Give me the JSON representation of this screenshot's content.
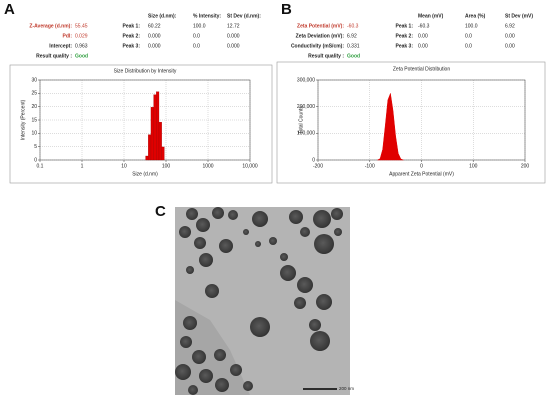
{
  "panel_labels": [
    "A",
    "B",
    "C"
  ],
  "summary_a": {
    "header": [
      "Size (d.nm):",
      "% Intensity:",
      "St Dev (d.nm):"
    ],
    "left": [
      [
        "Z-Average (d.nm):",
        "55.45"
      ],
      [
        "PdI:",
        "0.029"
      ],
      [
        "Intercept:",
        "0.963"
      ]
    ],
    "right": [
      [
        "Peak 1:",
        "60.22",
        "100.0",
        "12.72"
      ],
      [
        "Peak 2:",
        "0.000",
        "0.0",
        "0.000"
      ],
      [
        "Peak 3:",
        "0.000",
        "0.0",
        "0.000"
      ]
    ],
    "quality": [
      "Result quality :",
      "Good"
    ]
  },
  "summary_b": {
    "header": [
      "Mean (mV)",
      "Area (%)",
      "St Dev (mV)"
    ],
    "left": [
      [
        "Zeta Potential (mV):",
        "-60.3"
      ],
      [
        "Zeta Deviation (mV):",
        "6.92"
      ],
      [
        "Conductivity (mS/cm):",
        "0.331"
      ]
    ],
    "right": [
      [
        "Peak 1:",
        "-60.3",
        "100.0",
        "6.92"
      ],
      [
        "Peak 2:",
        "0.00",
        "0.0",
        "0.00"
      ],
      [
        "Peak 3:",
        "0.00",
        "0.0",
        "0.00"
      ]
    ],
    "quality": [
      "Result quality :",
      "Good"
    ]
  },
  "chart_data": [
    {
      "type": "histogram",
      "title": "Size Distribution by Intensity",
      "xlabel": "Size (d.nm)",
      "ylabel": "Intensity (Percent)",
      "bins": [
        32.67,
        37.84,
        43.82,
        50.75,
        58.77,
        68.06,
        78.82,
        91.28
      ],
      "counts": [
        1.5,
        9.5,
        19.8,
        24.5,
        25.6,
        14.2,
        4.9
      ],
      "color": "#e00000",
      "xlog": true,
      "xlim": [
        0.1,
        10000
      ],
      "xticks": [
        0.1,
        1,
        10,
        100,
        1000,
        {
          "value": 10000,
          "label": "10,000"
        }
      ],
      "ylim": [
        0,
        30
      ],
      "yticks": [
        0,
        5,
        10,
        15,
        20,
        25,
        30
      ],
      "grid": true
    },
    {
      "type": "area",
      "title": "Zeta Potential Distribution",
      "xlabel": "Apparent Zeta Potential (mV)",
      "ylabel": "Total Counts",
      "x": [
        -85,
        -80,
        -75,
        -70,
        -65,
        -60,
        -55,
        -50,
        -45,
        -40,
        -35
      ],
      "values": [
        0,
        5000,
        40000,
        130000,
        225000,
        250000,
        185000,
        90000,
        25000,
        4000,
        0
      ],
      "color": "#e00000",
      "xlim": [
        -200,
        200
      ],
      "xticks": [
        -200,
        -100,
        0,
        100,
        200
      ],
      "ylim": [
        0,
        300000
      ],
      "yticks": [
        0,
        {
          "value": 100000,
          "label": "100,000"
        },
        {
          "value": 200000,
          "label": "200,000"
        },
        {
          "value": 300000,
          "label": "300,000"
        }
      ],
      "grid": true
    }
  ],
  "scale_bar": "200 nm"
}
